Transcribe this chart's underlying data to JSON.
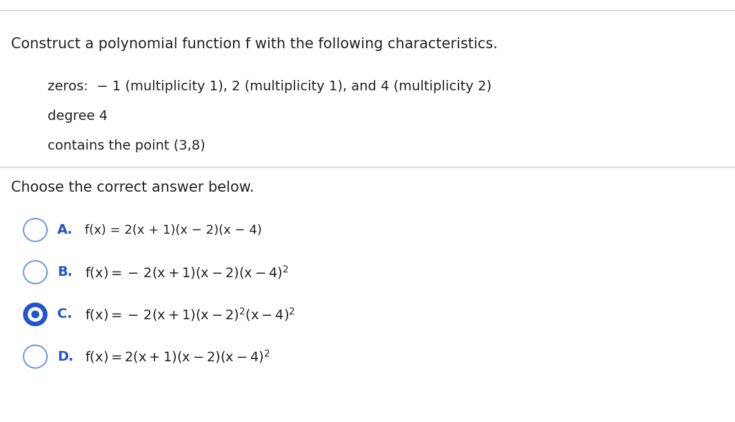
{
  "bg_color": "#ffffff",
  "top_line_color": "#cccccc",
  "sep_line_color": "#cccccc",
  "title_text": "Construct a polynomial function f with the following characteristics.",
  "bullet1_text": "zeros:  − 1 (multiplicity 1), 2 (multiplicity 1), and 4 (multiplicity 2)",
  "bullet2_text": "degree 4",
  "bullet3_text": "contains the point (3,8)",
  "choose_text": "Choose the correct answer below.",
  "label_color": "#2255cc",
  "text_color": "#222222",
  "circle_outline_color": "#7799dd",
  "circle_filled_color": "#2255cc",
  "title_fontsize": 15,
  "bullet_fontsize": 14,
  "choose_fontsize": 15,
  "option_label_fontsize": 14,
  "option_text_fontsize": 13,
  "super_fontsize": 9
}
